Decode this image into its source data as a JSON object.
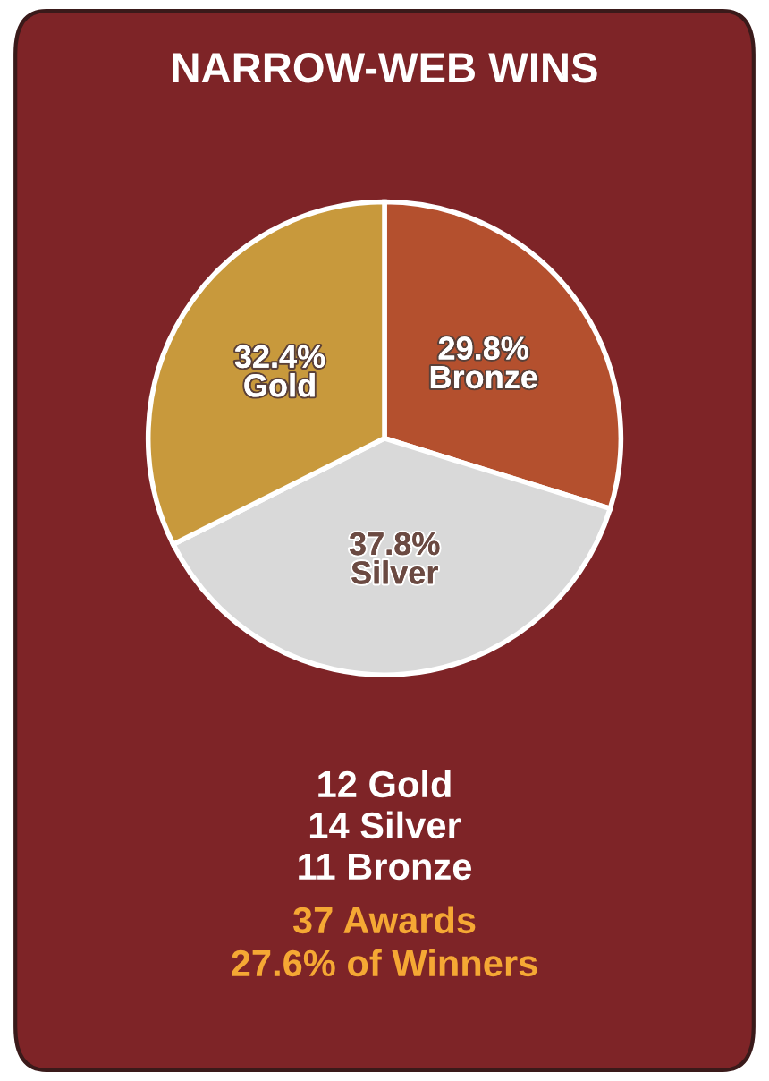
{
  "chart_data": {
    "type": "pie",
    "title": "NARROW-WEB WINS",
    "categories": [
      "Bronze",
      "Silver",
      "Gold"
    ],
    "values": [
      29.8,
      37.8,
      32.4
    ],
    "value_labels": [
      "29.8%",
      "37.8%",
      "32.4%"
    ],
    "colors": [
      "#b4502e",
      "#d9d9d9",
      "#c8993c"
    ],
    "annotations": [
      "12 Gold",
      "14 Silver",
      "11 Bronze",
      "37 Awards",
      "27.6% of Winners"
    ]
  }
}
